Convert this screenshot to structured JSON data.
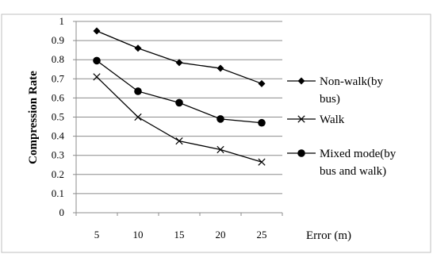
{
  "chart_data": {
    "type": "line",
    "title": "",
    "xlabel": "Error (m)",
    "ylabel": "Compression Rate",
    "categories": [
      "5",
      "10",
      "15",
      "20",
      "25"
    ],
    "ylim": [
      0,
      1
    ],
    "yticks": [
      "0",
      "0.1",
      "0.2",
      "0.3",
      "0.4",
      "0.5",
      "0.6",
      "0.7",
      "0.8",
      "0.9",
      "1"
    ],
    "grid": true,
    "legend_position": "right",
    "series": [
      {
        "name": "Non-walk(by bus)",
        "legend_lines": [
          "Non-walk(by",
          "bus)"
        ],
        "marker": "diamond",
        "values": [
          0.95,
          0.86,
          0.785,
          0.755,
          0.675
        ]
      },
      {
        "name": "Walk",
        "legend_lines": [
          "Walk"
        ],
        "marker": "x",
        "values": [
          0.71,
          0.5,
          0.375,
          0.33,
          0.265
        ]
      },
      {
        "name": "Mixed mode(by bus and walk)",
        "legend_lines": [
          "Mixed mode(by",
          "bus and walk)"
        ],
        "marker": "circle",
        "values": [
          0.795,
          0.635,
          0.575,
          0.49,
          0.47
        ]
      }
    ]
  }
}
